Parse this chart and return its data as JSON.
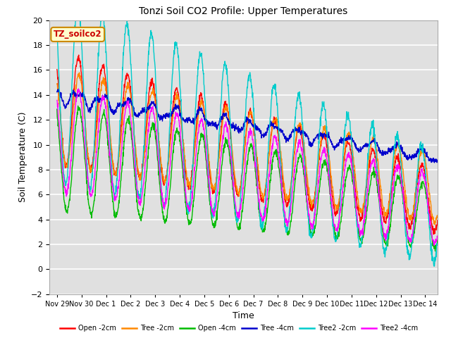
{
  "title": "Tonzi Soil CO2 Profile: Upper Temperatures",
  "xlabel": "Time",
  "ylabel": "Soil Temperature (C)",
  "ylim": [
    -2,
    20
  ],
  "background_color": "#ffffff",
  "plot_bg_color": "#e0e0e0",
  "grid_color": "#ffffff",
  "label_box_text": "TZ_soilco2",
  "label_box_color": "#ffffcc",
  "label_box_border": "#cc8800",
  "label_box_text_color": "#cc0000",
  "series": [
    {
      "name": "Open -2cm",
      "color": "#ff0000"
    },
    {
      "name": "Tree -2cm",
      "color": "#ff8800"
    },
    {
      "name": "Open -4cm",
      "color": "#00bb00"
    },
    {
      "name": "Tree -4cm",
      "color": "#0000cc"
    },
    {
      "name": "Tree2 -2cm",
      "color": "#00cccc"
    },
    {
      "name": "Tree2 -4cm",
      "color": "#ff00ff"
    }
  ],
  "x_tick_labels": [
    "Nov 29",
    "Nov 30",
    "Dec 1",
    "Dec 2",
    "Dec 3",
    "Dec 4",
    "Dec 5",
    "Dec 6",
    "Dec 7",
    "Dec 8",
    "Dec 9",
    "Dec 10",
    "Dec 11",
    "Dec 12",
    "Dec 13",
    "Dec 14"
  ],
  "n_days": 15.5,
  "points_per_day": 96,
  "figsize": [
    6.4,
    4.8
  ],
  "dpi": 100
}
